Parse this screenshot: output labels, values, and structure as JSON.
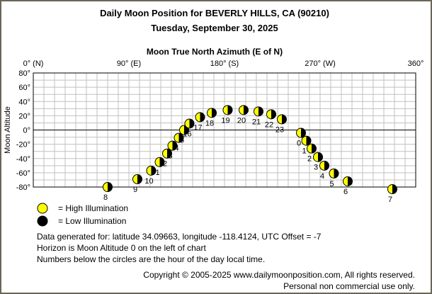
{
  "header": {
    "title": "Daily Moon Position for BEVERLY HILLS, CA (90210)",
    "date": "Tuesday, September 30, 2025"
  },
  "chart_data": {
    "type": "scatter",
    "title": "Moon True North Azimuth (E of N)",
    "xlabel": "Moon True North Azimuth (E of N)",
    "ylabel": "Moon Altitude",
    "xlim": [
      0,
      360
    ],
    "ylim": [
      -80,
      80
    ],
    "x_ticks": [
      {
        "value": 0,
        "label": "0° (N)"
      },
      {
        "value": 90,
        "label": "90° (E)"
      },
      {
        "value": 180,
        "label": "180° (S)"
      },
      {
        "value": 270,
        "label": "270° (W)"
      },
      {
        "value": 360,
        "label": "360°"
      }
    ],
    "y_ticks": [
      {
        "value": 80,
        "label": "80°"
      },
      {
        "value": 60,
        "label": "60°"
      },
      {
        "value": 40,
        "label": "40°"
      },
      {
        "value": 20,
        "label": "20°"
      },
      {
        "value": 0,
        "label": "0°"
      },
      {
        "value": -20,
        "label": "-20°"
      },
      {
        "value": -40,
        "label": "-40°"
      },
      {
        "value": -60,
        "label": "-60°"
      },
      {
        "value": -80,
        "label": "-80°"
      }
    ],
    "horizon_altitude": 0,
    "grid": true,
    "colors": {
      "lit": "#ffff00",
      "dark": "#000000",
      "grid": "#c0c0c0",
      "frame": "#6b6654"
    },
    "points": [
      {
        "hour": "8",
        "azimuth": 70,
        "altitude": -80
      },
      {
        "hour": "9",
        "azimuth": 98,
        "altitude": -69
      },
      {
        "hour": "10",
        "azimuth": 111,
        "altitude": -57
      },
      {
        "hour": "1",
        "azimuth": 119,
        "altitude": -45
      },
      {
        "hour": "2",
        "azimuth": 126,
        "altitude": -33
      },
      {
        "hour": "3",
        "azimuth": 131,
        "altitude": -22
      },
      {
        "hour": "4",
        "azimuth": 137,
        "altitude": -11
      },
      {
        "hour": "5",
        "azimuth": 142,
        "altitude": 0
      },
      {
        "hour": "16",
        "azimuth": 147,
        "altitude": 9
      },
      {
        "hour": "17",
        "azimuth": 157,
        "altitude": 18
      },
      {
        "hour": "18",
        "azimuth": 168,
        "altitude": 24
      },
      {
        "hour": "19",
        "azimuth": 183,
        "altitude": 28
      },
      {
        "hour": "20",
        "azimuth": 198,
        "altitude": 28
      },
      {
        "hour": "21",
        "azimuth": 212,
        "altitude": 26
      },
      {
        "hour": "22",
        "azimuth": 224,
        "altitude": 22
      },
      {
        "hour": "23",
        "azimuth": 234,
        "altitude": 15
      },
      {
        "hour": "0",
        "azimuth": 252,
        "altitude": -4
      },
      {
        "hour": "1",
        "azimuth": 257,
        "altitude": -15
      },
      {
        "hour": "2",
        "azimuth": 262,
        "altitude": -26
      },
      {
        "hour": "3",
        "azimuth": 268,
        "altitude": -38
      },
      {
        "hour": "4",
        "azimuth": 274,
        "altitude": -50
      },
      {
        "hour": "5",
        "azimuth": 283,
        "altitude": -61
      },
      {
        "hour": "6",
        "azimuth": 296,
        "altitude": -72
      },
      {
        "hour": "7",
        "azimuth": 338,
        "altitude": -83
      }
    ]
  },
  "legend": {
    "high": "= High Illumination",
    "low": "= Low Illumination"
  },
  "notes": {
    "data_generated": "Data generated for: latitude 34.09663, longitude -118.4124, UTC Offset = -7",
    "horizon": "Horizon is Moon Altitude 0 on the left of chart",
    "numbers": "Numbers below the circles are the hour of the day local time."
  },
  "footer": {
    "copyright": "Copyright © 2005-2025 www.dailymoonposition.com, All rights reserved.",
    "personal": "Personal non commercial use only."
  }
}
